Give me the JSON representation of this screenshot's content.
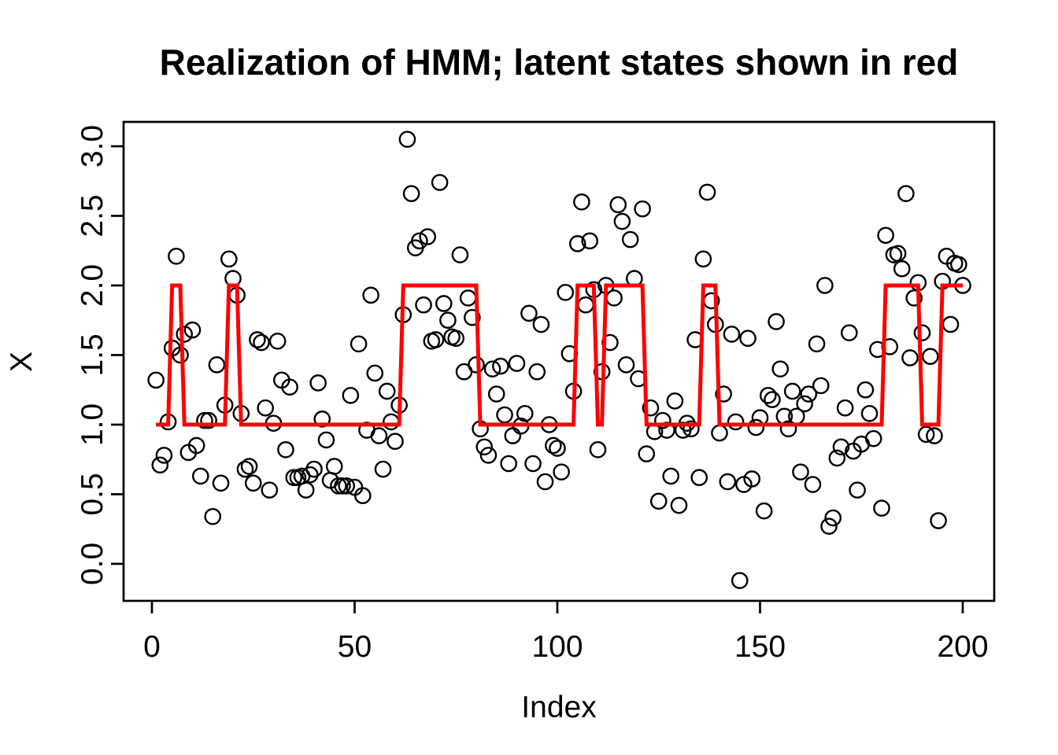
{
  "figure": {
    "title": "Realization of HMM; latent states shown in red",
    "xlabel": "Index",
    "ylabel": "X"
  },
  "chart_data": {
    "type": "scatter",
    "title": "Realization of HMM; latent states shown in red",
    "xlabel": "Index",
    "ylabel": "X",
    "grid": false,
    "legend": "none",
    "marker": "open-circle",
    "point_color": "#000000",
    "latent_color": "#FF0000",
    "xlim": [
      -6.99,
      207.77
    ],
    "ylim": [
      -0.266,
      3.175
    ],
    "x_ticks": [
      0,
      50,
      100,
      150,
      200
    ],
    "y_ticks": [
      0.0,
      0.5,
      1.0,
      1.5,
      2.0,
      2.5,
      3.0
    ],
    "n_points": 200,
    "observations": {
      "name": "X emissions (index 1..200)",
      "x_start": 1,
      "y": [
        1.32,
        0.71,
        0.78,
        1.02,
        1.55,
        2.21,
        1.5,
        1.65,
        0.8,
        1.68,
        0.85,
        0.63,
        1.03,
        1.03,
        0.34,
        1.43,
        0.58,
        1.14,
        2.19,
        2.05,
        1.93,
        1.08,
        0.68,
        0.7,
        0.58,
        1.61,
        1.59,
        1.12,
        0.53,
        1.01,
        1.6,
        1.32,
        0.82,
        1.27,
        0.62,
        0.62,
        0.63,
        0.53,
        0.64,
        0.68,
        1.3,
        1.04,
        0.89,
        0.6,
        0.7,
        0.56,
        0.56,
        0.56,
        1.21,
        0.55,
        1.58,
        0.49,
        0.96,
        1.93,
        1.37,
        0.92,
        0.68,
        1.24,
        1.02,
        0.88,
        1.14,
        1.79,
        3.05,
        2.66,
        2.27,
        2.32,
        1.86,
        2.35,
        1.6,
        1.61,
        2.74,
        1.87,
        1.75,
        1.63,
        1.62,
        2.22,
        1.38,
        1.91,
        1.77,
        1.43,
        0.97,
        0.84,
        0.78,
        1.4,
        1.22,
        1.42,
        1.07,
        0.72,
        0.92,
        1.44,
        0.99,
        1.08,
        1.8,
        0.72,
        1.38,
        1.72,
        0.59,
        1.0,
        0.85,
        0.83,
        0.66,
        1.95,
        1.51,
        1.24,
        2.3,
        2.6,
        1.86,
        2.32,
        1.97,
        0.82,
        1.38,
        2.0,
        1.59,
        1.91,
        2.58,
        2.46,
        1.43,
        2.33,
        2.05,
        1.33,
        2.55,
        0.79,
        1.12,
        0.95,
        0.45,
        1.03,
        0.96,
        0.63,
        1.17,
        0.42,
        0.96,
        1.01,
        0.97,
        1.61,
        0.62,
        2.19,
        2.67,
        1.89,
        1.72,
        0.94,
        1.22,
        0.59,
        1.65,
        1.02,
        -0.12,
        0.57,
        1.62,
        0.61,
        0.98,
        1.05,
        0.38,
        1.21,
        1.18,
        1.74,
        1.4,
        1.06,
        0.97,
        1.24,
        1.06,
        0.66,
        1.15,
        1.22,
        0.57,
        1.58,
        1.28,
        2.0,
        0.27,
        0.33,
        0.76,
        0.84,
        1.12,
        1.66,
        0.81,
        0.53,
        0.86,
        1.25,
        1.08,
        0.9,
        1.54,
        0.4,
        2.36,
        1.56,
        2.22,
        2.23,
        2.12,
        2.66,
        1.48,
        1.91,
        2.02,
        1.66,
        0.93,
        1.49,
        0.92,
        0.31,
        2.03,
        2.21,
        1.72,
        2.16,
        2.15,
        2.0
      ]
    },
    "latent_states": {
      "name": "latent states (red line, value = state)",
      "segments": [
        [
          1,
          4,
          1
        ],
        [
          5,
          7,
          2
        ],
        [
          8,
          18,
          1
        ],
        [
          19,
          21,
          2
        ],
        [
          22,
          61,
          1
        ],
        [
          62,
          80,
          2
        ],
        [
          81,
          104,
          1
        ],
        [
          105,
          109,
          2
        ],
        [
          110,
          111,
          1
        ],
        [
          112,
          121,
          2
        ],
        [
          122,
          135,
          1
        ],
        [
          136,
          139,
          2
        ],
        [
          140,
          180,
          1
        ],
        [
          181,
          189,
          2
        ],
        [
          190,
          194,
          1
        ],
        [
          195,
          200,
          2
        ]
      ]
    }
  }
}
